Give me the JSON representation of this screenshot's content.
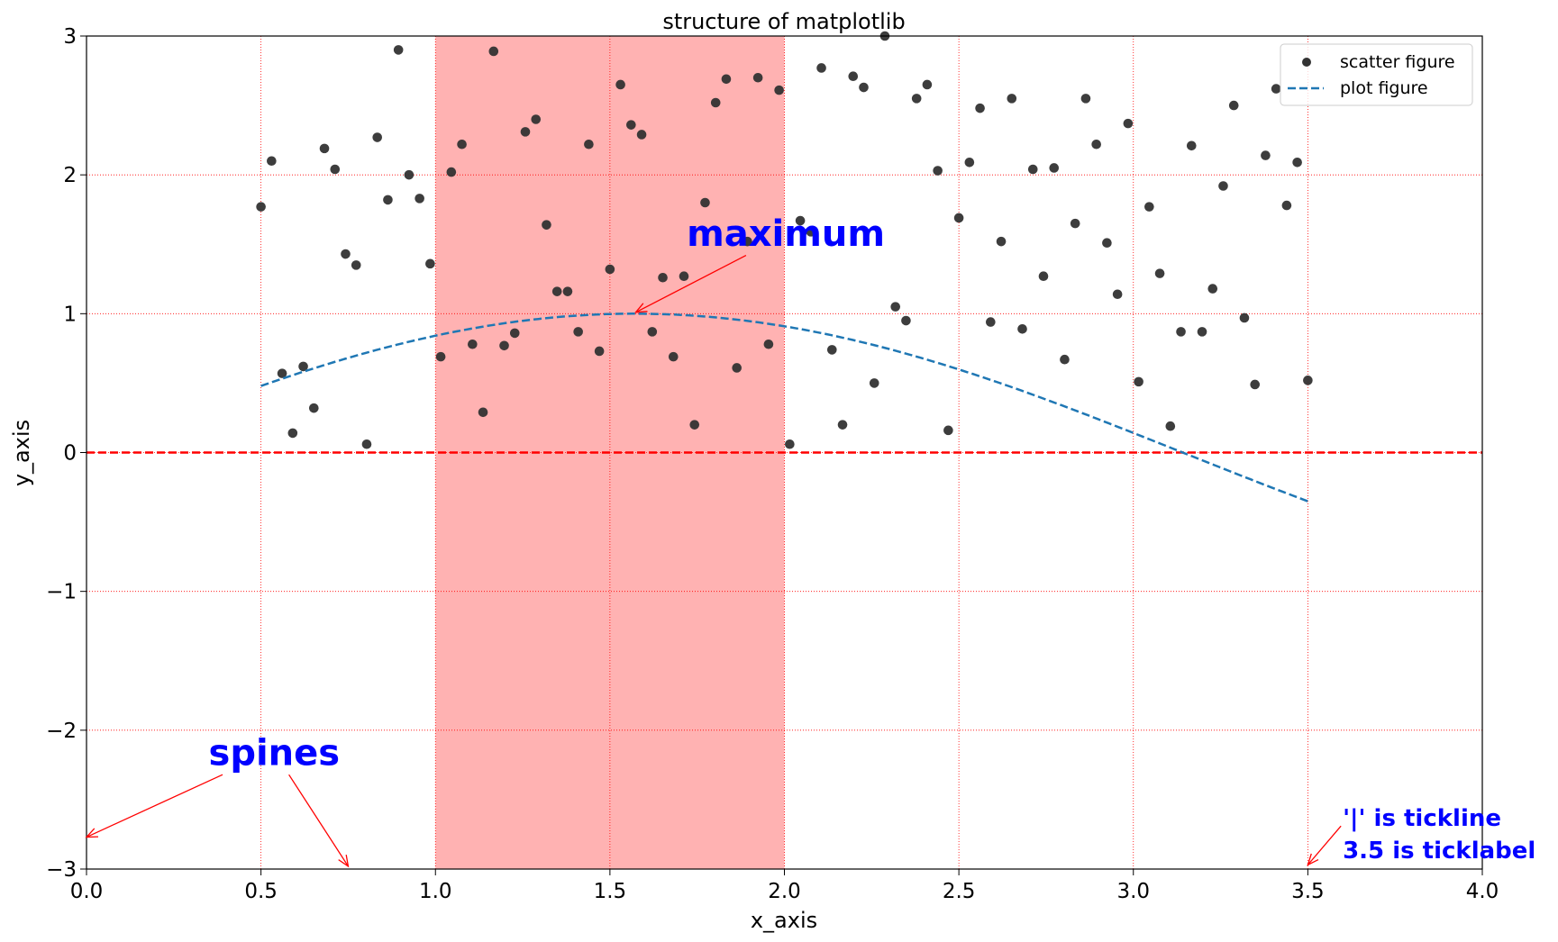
{
  "chart_data": {
    "type": "scatter",
    "title": "structure of matplotlib",
    "xlabel": "x_axis",
    "ylabel": "y_axis",
    "xlim": [
      0,
      4
    ],
    "ylim": [
      -3,
      3
    ],
    "xticks": [
      0.0,
      0.5,
      1.0,
      1.5,
      2.0,
      2.5,
      3.0,
      3.5,
      4.0
    ],
    "xtick_labels": [
      "0.0",
      "0.5",
      "1.0",
      "1.5",
      "2.0",
      "2.5",
      "3.0",
      "3.5",
      "4.0"
    ],
    "yticks": [
      -3,
      -2,
      -1,
      0,
      1,
      2,
      3
    ],
    "ytick_labels": [
      "−3",
      "−2",
      "−1",
      "0",
      "1",
      "2",
      "3"
    ],
    "grid": true,
    "grid_color": "#ff0000",
    "legend_position": "top-right",
    "series": [
      {
        "name": "scatter figure",
        "type": "scatter",
        "color": "#333333",
        "x_range": [
          0.5,
          3.5
        ],
        "y": [
          1.77,
          2.1,
          0.57,
          0.14,
          0.62,
          0.32,
          2.19,
          2.04,
          1.43,
          1.35,
          0.06,
          2.27,
          1.82,
          2.9,
          2.0,
          1.83,
          1.36,
          0.69,
          2.02,
          2.22,
          0.78,
          0.29,
          2.89,
          0.77,
          0.86,
          2.31,
          2.4,
          1.64,
          1.16,
          1.16,
          0.87,
          2.22,
          0.73,
          1.32,
          2.65,
          2.36,
          2.29,
          0.87,
          1.26,
          0.69,
          1.27,
          0.2,
          1.8,
          2.52,
          2.69,
          0.61,
          1.52,
          2.7,
          0.78,
          2.61,
          0.06,
          1.67,
          1.59,
          2.77,
          0.74,
          0.2,
          2.71,
          2.63,
          0.5,
          3.0,
          1.05,
          0.95,
          2.55,
          2.65,
          2.03,
          0.16,
          1.69,
          2.09,
          2.48,
          0.94,
          1.52,
          2.55,
          0.89,
          2.04,
          1.27,
          2.05,
          0.67,
          1.65,
          2.55,
          2.22,
          1.51,
          1.14,
          2.37,
          0.51,
          1.77,
          1.29,
          0.19,
          0.87,
          2.21,
          0.87,
          1.18,
          1.92,
          2.5,
          0.97,
          0.49,
          2.14,
          2.62,
          1.78,
          2.09,
          0.52
        ]
      },
      {
        "name": "plot figure",
        "type": "line",
        "function": "sin(x)",
        "style": "dashed",
        "color": "#1f77b4",
        "x_range": [
          0.5,
          3.5
        ]
      }
    ],
    "hline": {
      "y": 0,
      "color": "#ff0000",
      "style": "dashed"
    },
    "vspan": {
      "x": [
        1.0,
        2.0
      ],
      "color": "#ff0000",
      "alpha": 0.3
    },
    "annotations": [
      {
        "text": "maximum",
        "color": "#0000ff",
        "text_xy": [
          1.72,
          1.49
        ],
        "arrow_from": [
          1.89,
          1.42
        ],
        "arrow_to": [
          1.574,
          1.01
        ]
      },
      {
        "text": "spines",
        "color": "#0000ff",
        "text_xy": [
          0.35,
          -2.25
        ],
        "arrows": [
          {
            "from": [
              0.39,
              -2.32
            ],
            "to": [
              0.0,
              -2.77
            ]
          },
          {
            "from": [
              0.58,
              -2.32
            ],
            "to": [
              0.75,
              -2.98
            ]
          }
        ]
      },
      {
        "lines": [
          "'|' is tickline",
          "3.5 is ticklabel"
        ],
        "color": "#0000ff",
        "text_xy": [
          3.6,
          -2.7
        ],
        "arrow_from": [
          3.595,
          -2.69
        ],
        "arrow_to": [
          3.5,
          -2.97
        ]
      }
    ]
  }
}
